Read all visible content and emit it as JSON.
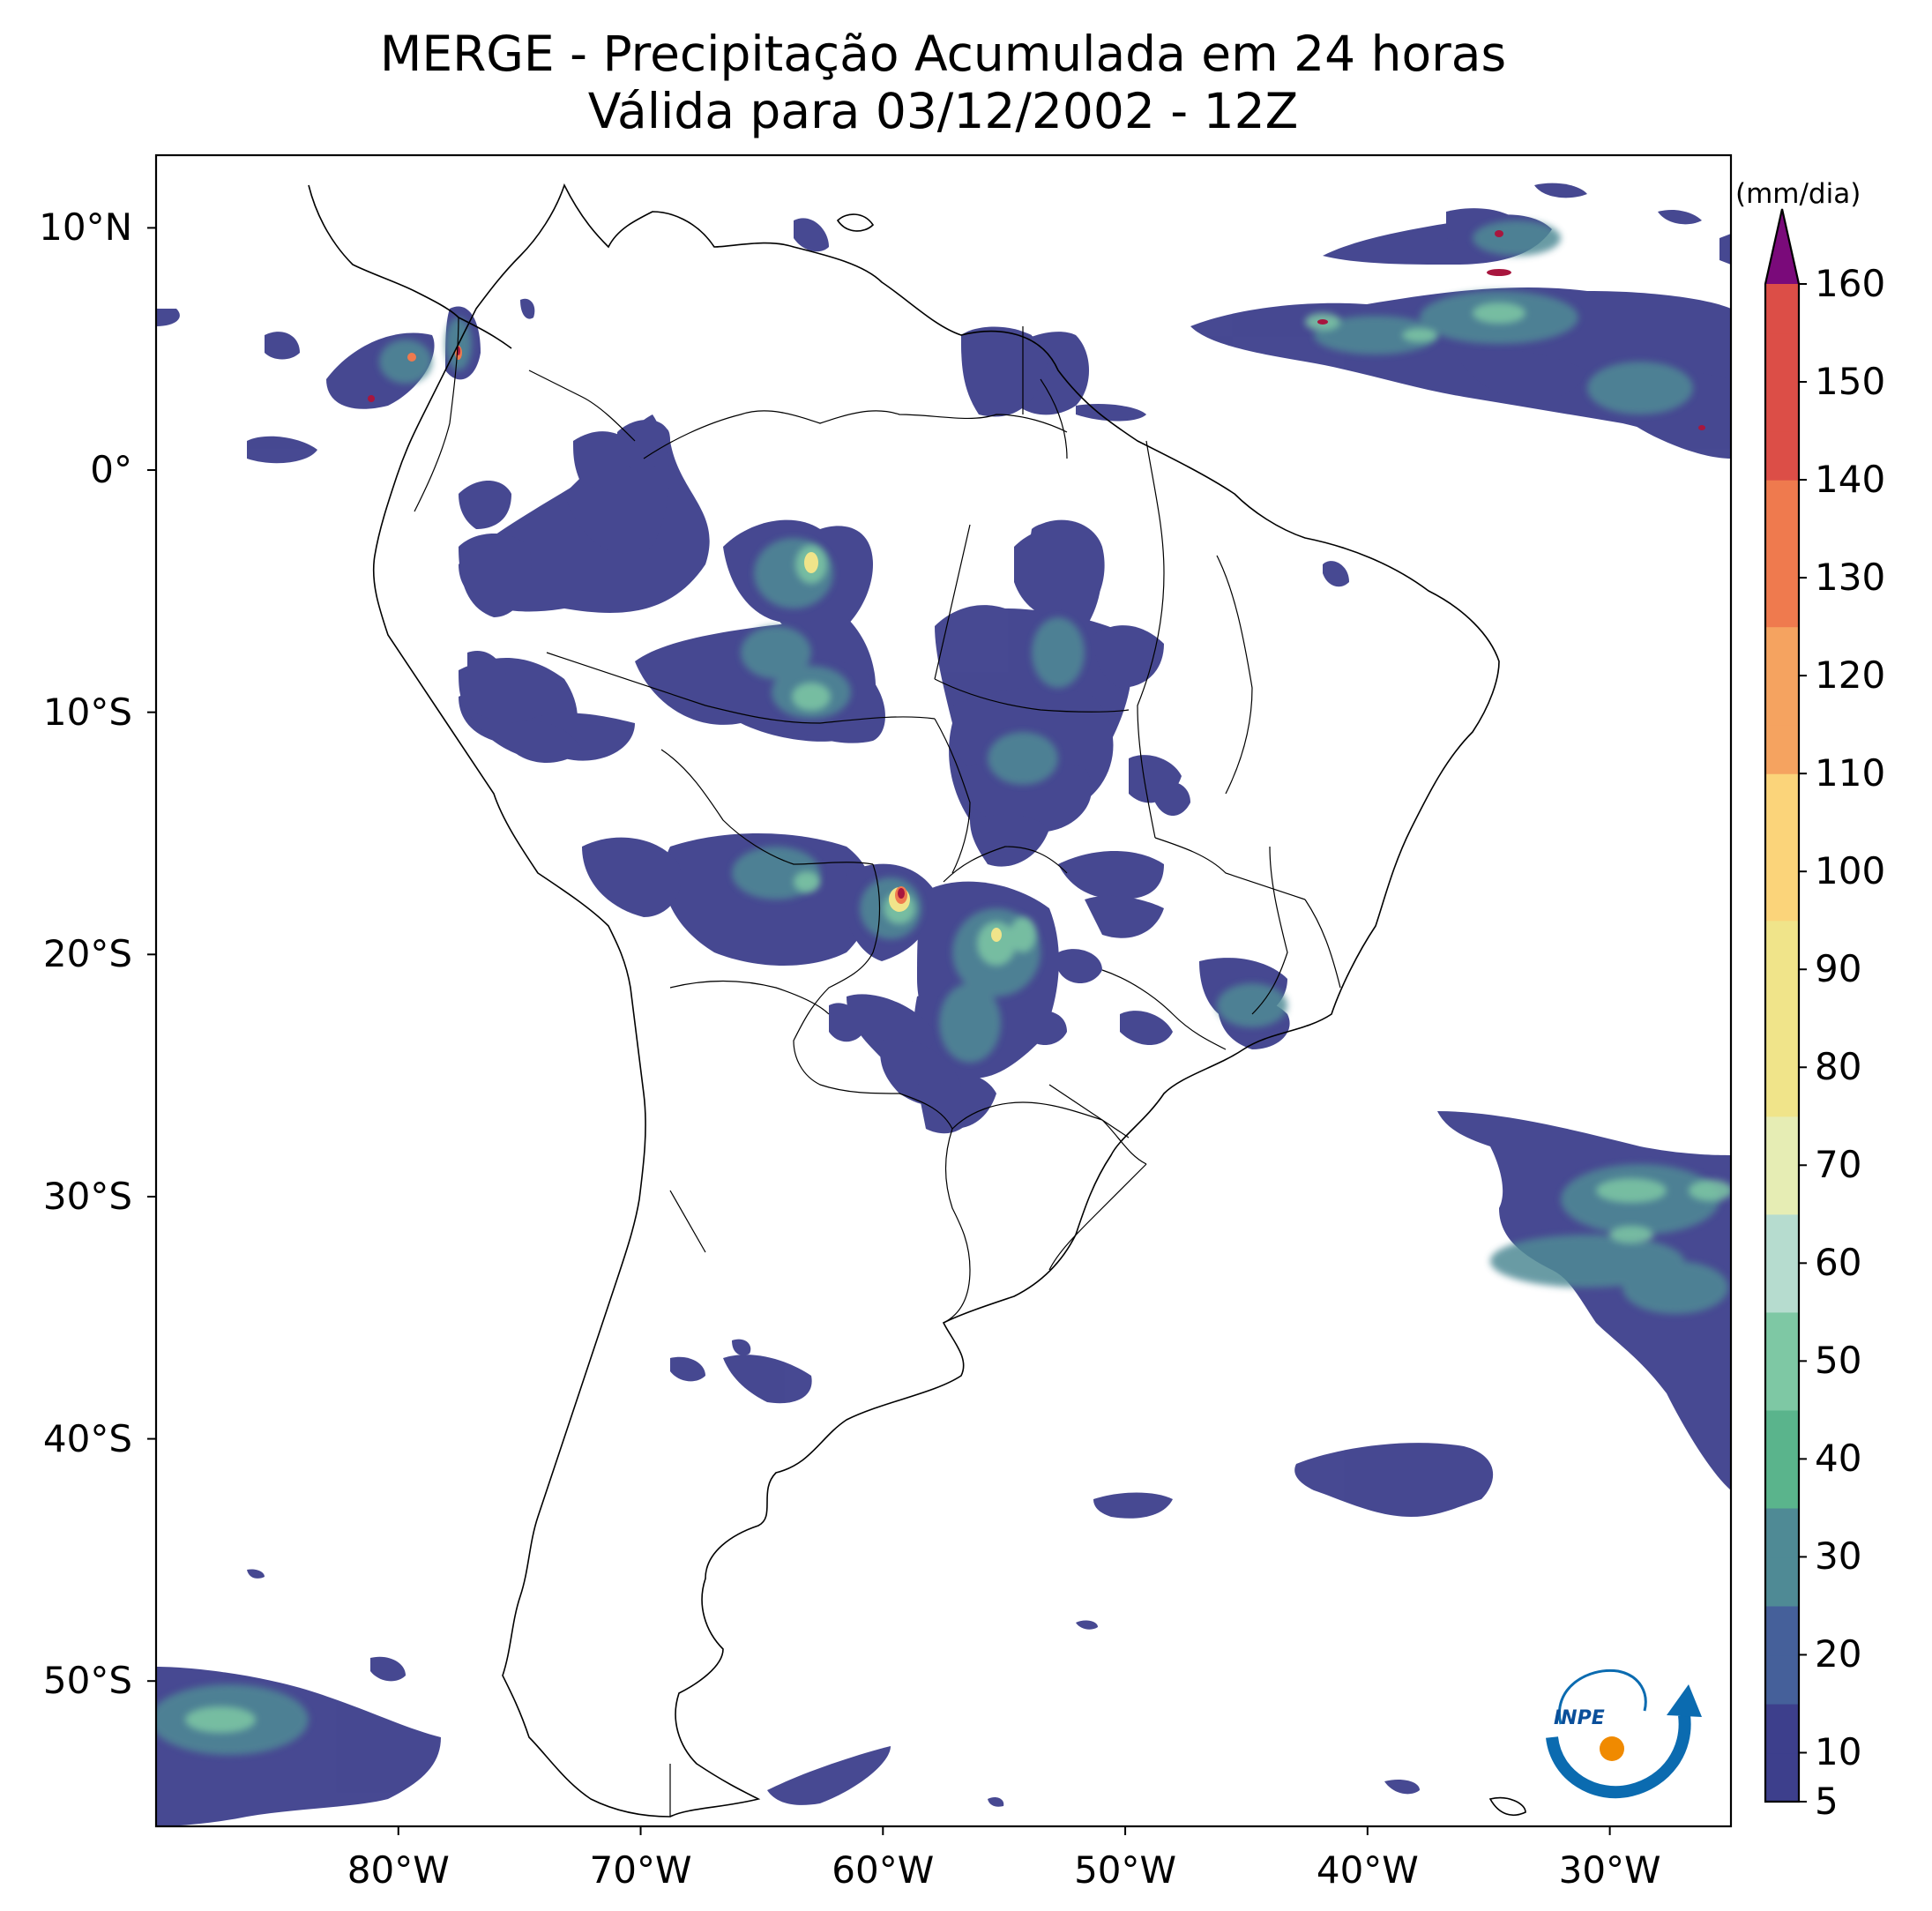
{
  "title": {
    "line1": "MERGE - Precipitação Acumulada em 24 horas",
    "line2": "Válida para 03/12/2002 - 12Z"
  },
  "axes": {
    "lon_range": [
      -90,
      -25
    ],
    "lat_range": [
      -56,
      13
    ],
    "lat_ticks": [
      {
        "value": 10,
        "label": "10°N"
      },
      {
        "value": 0,
        "label": "0°"
      },
      {
        "value": -10,
        "label": "10°S"
      },
      {
        "value": -20,
        "label": "20°S"
      },
      {
        "value": -30,
        "label": "30°S"
      },
      {
        "value": -40,
        "label": "40°S"
      },
      {
        "value": -50,
        "label": "50°S"
      }
    ],
    "lon_ticks": [
      {
        "value": -80,
        "label": "80°W"
      },
      {
        "value": -70,
        "label": "70°W"
      },
      {
        "value": -60,
        "label": "60°W"
      },
      {
        "value": -50,
        "label": "50°W"
      },
      {
        "value": -40,
        "label": "40°W"
      },
      {
        "value": -30,
        "label": "30°W"
      }
    ]
  },
  "colorbar": {
    "unit": "(mm/dia)",
    "min": 5,
    "max": 160,
    "extend": "max",
    "tick_labels": [
      "5",
      "10",
      "20",
      "30",
      "40",
      "50",
      "60",
      "70",
      "80",
      "90",
      "100",
      "110",
      "120",
      "130",
      "140",
      "150",
      "160"
    ],
    "stops": [
      {
        "v": 5,
        "color": "#3d3f8c"
      },
      {
        "v": 15,
        "color": "#45609a"
      },
      {
        "v": 25,
        "color": "#4f8a95"
      },
      {
        "v": 35,
        "color": "#5ab48c"
      },
      {
        "v": 45,
        "color": "#7ec8a4"
      },
      {
        "v": 55,
        "color": "#b6dccf"
      },
      {
        "v": 65,
        "color": "#e6edb4"
      },
      {
        "v": 75,
        "color": "#f0e48a"
      },
      {
        "v": 95,
        "color": "#fbd47a"
      },
      {
        "v": 110,
        "color": "#f5a360"
      },
      {
        "v": 125,
        "color": "#ef7a4e"
      },
      {
        "v": 140,
        "color": "#dc4e47"
      },
      {
        "v": 160,
        "color": "#a8163e"
      }
    ],
    "extend_color": "#7a0a7a"
  },
  "logo": {
    "text": "INPE"
  }
}
